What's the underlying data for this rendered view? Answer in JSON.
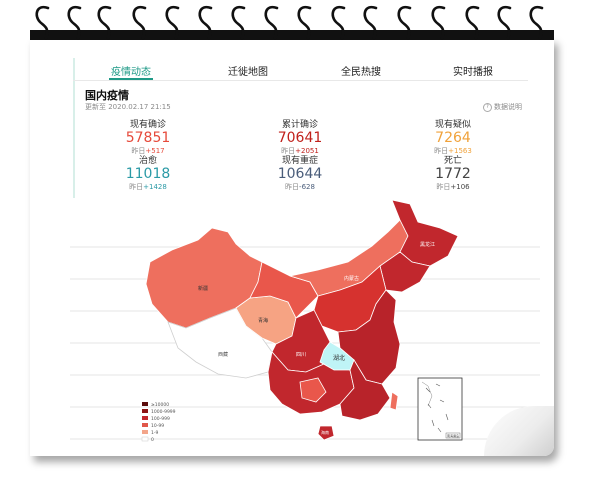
{
  "tabs": [
    {
      "label": "疫情动态",
      "active": true
    },
    {
      "label": "迁徙地图",
      "active": false
    },
    {
      "label": "全民热搜",
      "active": false
    },
    {
      "label": "实时播报",
      "active": false
    }
  ],
  "card": {
    "title": "国内疫情",
    "updated": "更新至 2020.02.17 21:15",
    "help": "数据说明"
  },
  "stats": [
    {
      "label": "现有确诊",
      "value": "57851",
      "delta_prefix": "昨日",
      "delta": "+517",
      "color": "#e64a3b"
    },
    {
      "label": "累计确诊",
      "value": "70641",
      "delta_prefix": "昨日",
      "delta": "+2051",
      "color": "#c0201b"
    },
    {
      "label": "现有疑似",
      "value": "7264",
      "delta_prefix": "昨日",
      "delta": "+1563",
      "color": "#f0a23b"
    },
    {
      "label": "治愈",
      "value": "11018",
      "delta_prefix": "昨日",
      "delta": "+1428",
      "color": "#2b9aa6"
    },
    {
      "label": "现有重症",
      "value": "10644",
      "delta_prefix": "昨日",
      "delta": "-628",
      "color": "#4a5d7a"
    },
    {
      "label": "死亡",
      "value": "1772",
      "delta_prefix": "昨日",
      "delta": "+106",
      "color": "#444444"
    }
  ],
  "map_labels": {
    "hubei": "湖北",
    "xizang": "西藏",
    "qinghai": "青海",
    "xinjiang": "新疆",
    "heilongjiang": "黑龙江",
    "neimenggu": "内蒙古",
    "sichuan": "四川",
    "hainan": "海南"
  },
  "legend": [
    {
      "label": "≥10000",
      "color": "#5a0a0a"
    },
    {
      "label": "1000-9999",
      "color": "#8c1414"
    },
    {
      "label": "100-999",
      "color": "#c1272d"
    },
    {
      "label": "10-99",
      "color": "#e0574a"
    },
    {
      "label": "1-9",
      "color": "#f3a58a"
    },
    {
      "label": "0",
      "color": "#ffffff"
    }
  ],
  "inset_label": "南海诸岛"
}
